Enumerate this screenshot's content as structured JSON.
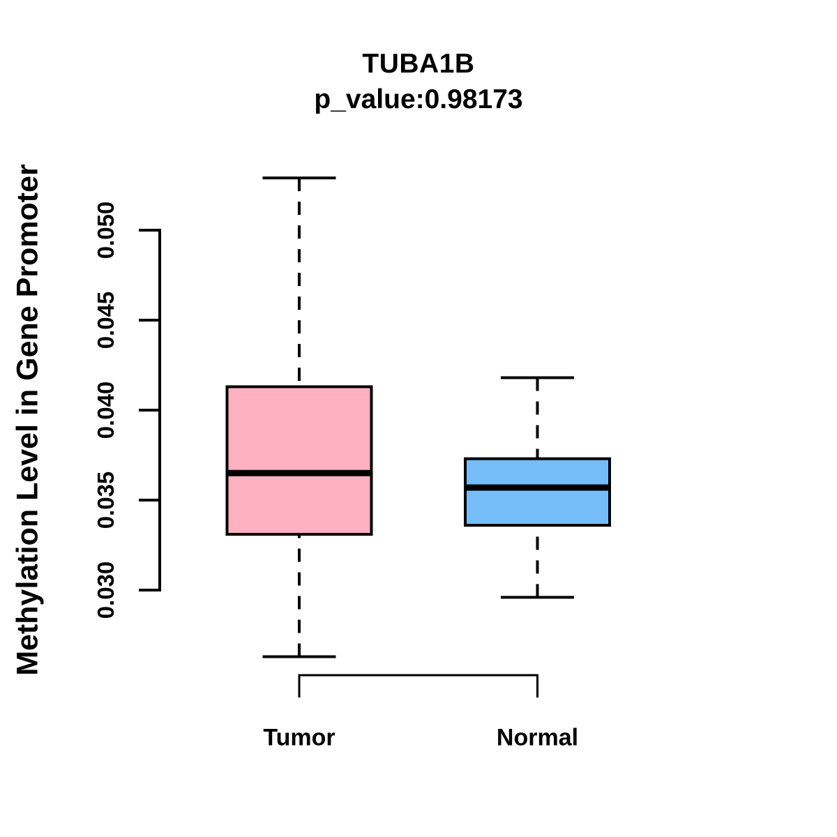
{
  "chart_data": {
    "type": "boxplot",
    "title": "TUBA1B",
    "subtitle": "p_value:0.98173",
    "p_value": 0.98173,
    "ylabel": "Methylation Level in Gene Promoter",
    "categories": [
      "Tumor",
      "Normal"
    ],
    "series": [
      {
        "name": "Tumor",
        "box_color": "#FFB1C1",
        "lower_whisker": 0.0263,
        "q1": 0.0331,
        "median": 0.0365,
        "q3": 0.0413,
        "upper_whisker": 0.0529
      },
      {
        "name": "Normal",
        "box_color": "#74BDF8",
        "lower_whisker": 0.0296,
        "q1": 0.0336,
        "median": 0.0357,
        "q3": 0.0373,
        "upper_whisker": 0.0418
      }
    ],
    "ylim": [
      0.03,
      0.05
    ],
    "yticks": [
      0.03,
      0.035,
      0.04,
      0.045,
      0.05
    ],
    "ytick_labels": [
      "0.030",
      "0.035",
      "0.040",
      "0.045",
      "0.050"
    ],
    "grid": false,
    "legend": "none",
    "whisker_line_style": "dashed",
    "line_color": "#000000",
    "background_color": "#FFFFFF",
    "comparison_bracket": {
      "from": "Tumor",
      "to": "Normal"
    }
  }
}
